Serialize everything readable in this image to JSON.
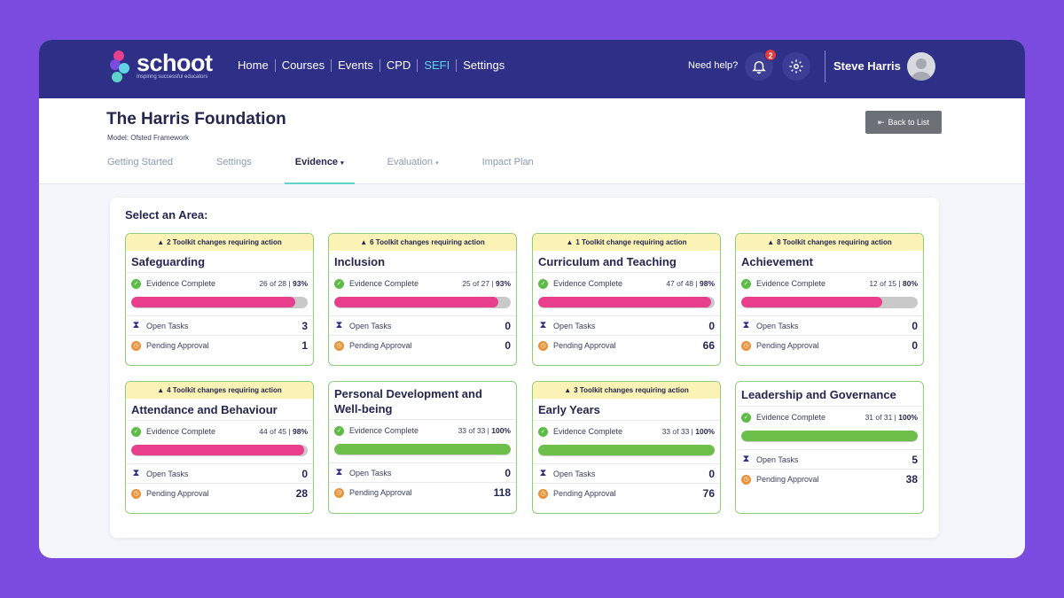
{
  "brand": {
    "name": "schoot",
    "tagline": "Inspiring successful educators"
  },
  "nav": [
    {
      "label": "Home",
      "active": false
    },
    {
      "label": "Courses",
      "active": false
    },
    {
      "label": "Events",
      "active": false
    },
    {
      "label": "CPD",
      "active": false
    },
    {
      "label": "SEFI",
      "active": true
    },
    {
      "label": "Settings",
      "active": false
    }
  ],
  "topbar": {
    "help": "Need help?",
    "notifications": "2",
    "user": "Steve Harris"
  },
  "header": {
    "title": "The Harris Foundation",
    "model": "Model: Ofsted Framework",
    "back": "Back to List"
  },
  "tabs": [
    {
      "label": "Getting Started",
      "active": false,
      "caret": false
    },
    {
      "label": "Settings",
      "active": false,
      "caret": false
    },
    {
      "label": "Evidence",
      "active": true,
      "caret": true
    },
    {
      "label": "Evaluation",
      "active": false,
      "caret": true
    },
    {
      "label": "Impact Plan",
      "active": false,
      "caret": false
    }
  ],
  "panel_title": "Select an Area:",
  "labels": {
    "evidence": "Evidence Complete",
    "tasks": "Open Tasks",
    "pending": "Pending Approval"
  },
  "colors": {
    "progress_partial": "#e83e8c",
    "progress_complete": "#6cc04a",
    "progress_track": "#c9c9c9"
  },
  "areas": [
    {
      "title": "Safeguarding",
      "alert": "2 Toolkit changes requiring action",
      "frac": "26 of 28",
      "pct": "93%",
      "progress": 0.93,
      "tasks": "3",
      "pending": "1"
    },
    {
      "title": "Inclusion",
      "alert": "6 Toolkit changes requiring action",
      "frac": "25 of 27",
      "pct": "93%",
      "progress": 0.93,
      "tasks": "0",
      "pending": "0"
    },
    {
      "title": "Curriculum and Teaching",
      "alert": "1 Toolkit change requiring action",
      "frac": "47 of 48",
      "pct": "98%",
      "progress": 0.98,
      "tasks": "0",
      "pending": "66"
    },
    {
      "title": "Achievement",
      "alert": "8 Toolkit changes requiring action",
      "frac": "12 of 15",
      "pct": "80%",
      "progress": 0.8,
      "tasks": "0",
      "pending": "0"
    },
    {
      "title": "Attendance and Behaviour",
      "alert": "4 Toolkit changes requiring action",
      "frac": "44 of 45",
      "pct": "98%",
      "progress": 0.98,
      "tasks": "0",
      "pending": "28"
    },
    {
      "title": "Personal Development and Well-being",
      "alert": "",
      "frac": "33 of 33",
      "pct": "100%",
      "progress": 1.0,
      "tasks": "0",
      "pending": "118"
    },
    {
      "title": "Early Years",
      "alert": "3 Toolkit changes requiring action",
      "frac": "33 of 33",
      "pct": "100%",
      "progress": 1.0,
      "tasks": "0",
      "pending": "76"
    },
    {
      "title": "Leadership and Governance",
      "alert": "",
      "frac": "31 of 31",
      "pct": "100%",
      "progress": 1.0,
      "tasks": "5",
      "pending": "38"
    }
  ]
}
